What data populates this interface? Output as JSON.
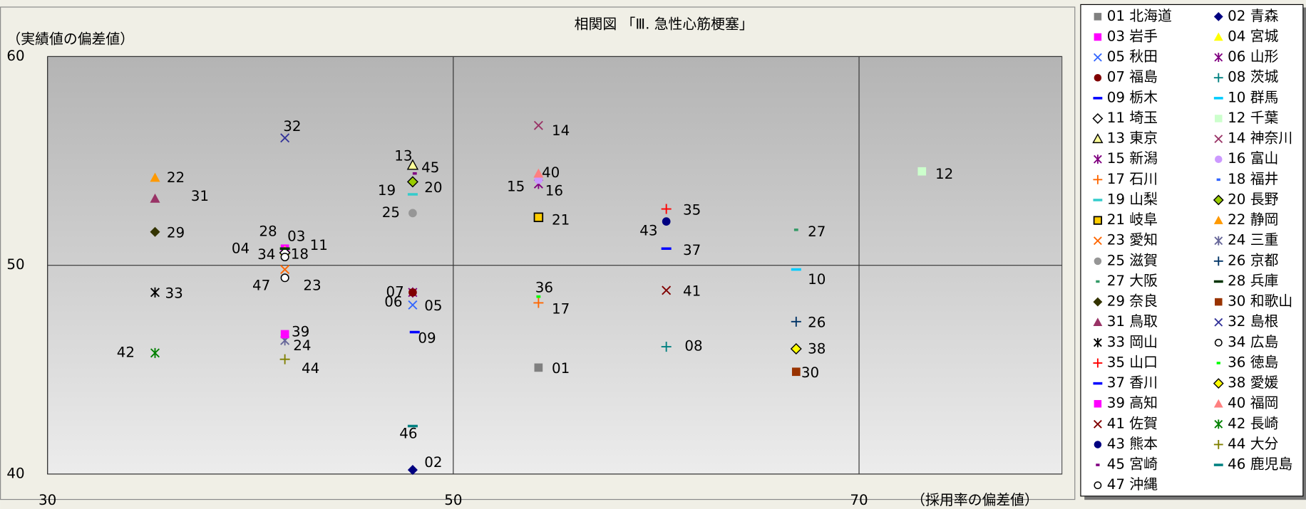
{
  "chart_data": {
    "type": "scatter",
    "title": "相関図 「Ⅲ. 急性心筋梗塞」",
    "ylabel": "（実績値の偏差値）",
    "xlabel": "（採用率の偏差値）",
    "xlim": [
      30,
      80
    ],
    "xticks": [
      30,
      50,
      70
    ],
    "ylim": [
      40,
      60
    ],
    "yticks": [
      40,
      50,
      60
    ],
    "grid": true,
    "legend": "right",
    "series": [
      {
        "name": "01 北海道",
        "label": "01",
        "color": "#808080",
        "marker": "square",
        "x": [
          54.2
        ],
        "values": [
          45.1
        ]
      },
      {
        "name": "02 青森",
        "label": "02",
        "color": "#000080",
        "marker": "diamond",
        "x": [
          48.0
        ],
        "values": [
          40.2
        ]
      },
      {
        "name": "03 岩手",
        "label": "03",
        "color": "#ff00ff",
        "marker": "square",
        "x": [
          41.7
        ],
        "values": [
          50.8
        ]
      },
      {
        "name": "04 宮城",
        "label": "04",
        "color": "#ffff00",
        "marker": "triangle",
        "x": [
          41.7
        ],
        "values": [
          50.7
        ]
      },
      {
        "name": "05 秋田",
        "label": "05",
        "color": "#3366ff",
        "marker": "x",
        "x": [
          48.0
        ],
        "values": [
          48.1
        ]
      },
      {
        "name": "06 山形",
        "label": "06",
        "color": "#800080",
        "marker": "asterisk",
        "x": [
          48.0
        ],
        "values": [
          48.7
        ]
      },
      {
        "name": "07 福島",
        "label": "07",
        "color": "#800000",
        "marker": "circle",
        "x": [
          48.0
        ],
        "values": [
          48.7
        ]
      },
      {
        "name": "08 茨城",
        "label": "08",
        "color": "#008080",
        "marker": "plus",
        "x": [
          60.5
        ],
        "values": [
          46.1
        ]
      },
      {
        "name": "09 栃木",
        "label": "09",
        "color": "#0000ff",
        "marker": "dash",
        "x": [
          48.1
        ],
        "values": [
          46.8
        ]
      },
      {
        "name": "10 群馬",
        "label": "10",
        "color": "#00ccff",
        "marker": "dash",
        "x": [
          66.9
        ],
        "values": [
          49.8
        ]
      },
      {
        "name": "11 埼玉",
        "label": "11",
        "color": "#000000",
        "marker": "diamond-open",
        "x": [
          41.7
        ],
        "values": [
          50.6
        ]
      },
      {
        "name": "12 千葉",
        "label": "12",
        "color": "#ccffcc",
        "marker": "square",
        "x": [
          73.1
        ],
        "values": [
          54.5
        ]
      },
      {
        "name": "13 東京",
        "label": "13",
        "color": "#ffff99",
        "marker": "triangle-open",
        "x": [
          48.0
        ],
        "values": [
          54.8
        ]
      },
      {
        "name": "14 神奈川",
        "label": "14",
        "color": "#993366",
        "marker": "x",
        "x": [
          54.2
        ],
        "values": [
          56.7
        ]
      },
      {
        "name": "15 新潟",
        "label": "15",
        "color": "#800080",
        "marker": "asterisk",
        "x": [
          54.2
        ],
        "values": [
          53.9
        ]
      },
      {
        "name": "16 富山",
        "label": "16",
        "color": "#cc99ff",
        "marker": "circle",
        "x": [
          54.2
        ],
        "values": [
          54.1
        ]
      },
      {
        "name": "17 石川",
        "label": "17",
        "color": "#ff6600",
        "marker": "plus",
        "x": [
          54.2
        ],
        "values": [
          48.2
        ]
      },
      {
        "name": "18 福井",
        "label": "18",
        "color": "#3366ff",
        "marker": "dash-small",
        "x": [
          41.7
        ],
        "values": [
          50.5
        ]
      },
      {
        "name": "19 山梨",
        "label": "19",
        "color": "#33cccc",
        "marker": "dash",
        "x": [
          48.0
        ],
        "values": [
          53.4
        ]
      },
      {
        "name": "20 長野",
        "label": "20",
        "color": "#99cc00",
        "marker": "diamond-edged",
        "x": [
          48.0
        ],
        "values": [
          54.0
        ]
      },
      {
        "name": "21 岐阜",
        "label": "21",
        "color": "#ffcc00",
        "marker": "square-edged",
        "x": [
          54.2
        ],
        "values": [
          52.3
        ]
      },
      {
        "name": "22 静岡",
        "label": "22",
        "color": "#ff9900",
        "marker": "triangle",
        "x": [
          35.3
        ],
        "values": [
          54.2
        ]
      },
      {
        "name": "23 愛知",
        "label": "23",
        "color": "#ff6600",
        "marker": "x",
        "x": [
          41.7
        ],
        "values": [
          49.8
        ]
      },
      {
        "name": "24 三重",
        "label": "24",
        "color": "#666699",
        "marker": "asterisk",
        "x": [
          41.7
        ],
        "values": [
          46.4
        ]
      },
      {
        "name": "25 滋賀",
        "label": "25",
        "color": "#969696",
        "marker": "circle",
        "x": [
          48.0
        ],
        "values": [
          52.5
        ]
      },
      {
        "name": "26 京都",
        "label": "26",
        "color": "#003366",
        "marker": "plus",
        "x": [
          66.9
        ],
        "values": [
          47.3
        ]
      },
      {
        "name": "27 大阪",
        "label": "27",
        "color": "#339966",
        "marker": "dash-small",
        "x": [
          66.9
        ],
        "values": [
          51.7
        ]
      },
      {
        "name": "28 兵庫",
        "label": "28",
        "color": "#003300",
        "marker": "dash",
        "x": [
          41.7
        ],
        "values": [
          50.8
        ]
      },
      {
        "name": "29 奈良",
        "label": "29",
        "color": "#333300",
        "marker": "diamond",
        "x": [
          35.3
        ],
        "values": [
          51.6
        ]
      },
      {
        "name": "30 和歌山",
        "label": "30",
        "color": "#993300",
        "marker": "square",
        "x": [
          66.9
        ],
        "values": [
          44.9
        ]
      },
      {
        "name": "31 鳥取",
        "label": "31",
        "color": "#993366",
        "marker": "triangle",
        "x": [
          35.3
        ],
        "values": [
          53.2
        ]
      },
      {
        "name": "32 島根",
        "label": "32",
        "color": "#333399",
        "marker": "x",
        "x": [
          41.7
        ],
        "values": [
          56.1
        ]
      },
      {
        "name": "33 岡山",
        "label": "33",
        "color": "#000000",
        "marker": "asterisk",
        "x": [
          35.3
        ],
        "values": [
          48.7
        ]
      },
      {
        "name": "34 広島",
        "label": "34",
        "color": "#000000",
        "marker": "circle-open",
        "x": [
          41.7
        ],
        "values": [
          50.4
        ]
      },
      {
        "name": "35 山口",
        "label": "35",
        "color": "#ff0000",
        "marker": "plus",
        "x": [
          60.5
        ],
        "values": [
          52.7
        ]
      },
      {
        "name": "36 徳島",
        "label": "36",
        "color": "#00ff00",
        "marker": "dash-small",
        "x": [
          54.2
        ],
        "values": [
          48.5
        ]
      },
      {
        "name": "37 香川",
        "label": "37",
        "color": "#0000ff",
        "marker": "dash",
        "x": [
          60.5
        ],
        "values": [
          50.8
        ]
      },
      {
        "name": "38 愛媛",
        "label": "38",
        "color": "#ffff00",
        "marker": "diamond-edged",
        "x": [
          66.9
        ],
        "values": [
          46.0
        ]
      },
      {
        "name": "39 高知",
        "label": "39",
        "color": "#ff00ff",
        "marker": "square",
        "x": [
          41.7
        ],
        "values": [
          46.7
        ]
      },
      {
        "name": "40 福岡",
        "label": "40",
        "color": "#ff8080",
        "marker": "triangle",
        "x": [
          54.2
        ],
        "values": [
          54.4
        ]
      },
      {
        "name": "41 佐賀",
        "label": "41",
        "color": "#800000",
        "marker": "x",
        "x": [
          60.5
        ],
        "values": [
          48.8
        ]
      },
      {
        "name": "42 長崎",
        "label": "42",
        "color": "#008000",
        "marker": "asterisk",
        "x": [
          35.3
        ],
        "values": [
          45.8
        ]
      },
      {
        "name": "43 熊本",
        "label": "43",
        "color": "#000080",
        "marker": "circle",
        "x": [
          60.5
        ],
        "values": [
          52.1
        ]
      },
      {
        "name": "44 大分",
        "label": "44",
        "color": "#808000",
        "marker": "plus",
        "x": [
          41.7
        ],
        "values": [
          45.5
        ]
      },
      {
        "name": "45 宮崎",
        "label": "45",
        "color": "#800080",
        "marker": "dash-small",
        "x": [
          48.1
        ],
        "values": [
          54.4
        ]
      },
      {
        "name": "46 鹿児島",
        "label": "46",
        "color": "#008080",
        "marker": "dash",
        "x": [
          48.0
        ],
        "values": [
          42.3
        ]
      },
      {
        "name": "47 沖縄",
        "label": "47",
        "color": "#000000",
        "marker": "circle-open",
        "x": [
          41.7
        ],
        "values": [
          49.4
        ]
      }
    ]
  }
}
